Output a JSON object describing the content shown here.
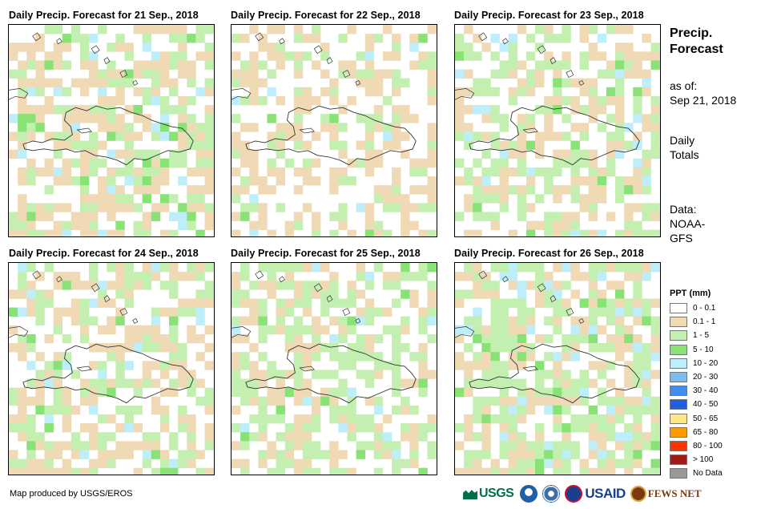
{
  "panels": [
    {
      "title": "Daily Precip. Forecast for 21 Sep., 2018"
    },
    {
      "title": "Daily Precip. Forecast for 22 Sep., 2018"
    },
    {
      "title": "Daily Precip. Forecast for 23 Sep., 2018"
    },
    {
      "title": "Daily Precip. Forecast for 24 Sep., 2018"
    },
    {
      "title": "Daily Precip. Forecast for 25 Sep., 2018"
    },
    {
      "title": "Daily Precip. Forecast for 26 Sep., 2018"
    }
  ],
  "sidebar": {
    "title_line1": "Precip.",
    "title_line2": "Forecast",
    "asof_label": "as of:",
    "asof_date": "Sep 21, 2018",
    "totals_line1": "Daily",
    "totals_line2": "Totals",
    "source_line1": "Data:",
    "source_line2": "NOAA-",
    "source_line3": "GFS"
  },
  "legend": {
    "title": "PPT (mm)",
    "items": [
      {
        "label": "0 - 0.1",
        "color": "#ffffff"
      },
      {
        "label": "0.1 - 1",
        "color": "#f0d9b5"
      },
      {
        "label": "1 - 5",
        "color": "#c3f0b0"
      },
      {
        "label": "5 - 10",
        "color": "#88e276"
      },
      {
        "label": "10 - 20",
        "color": "#bdeefa"
      },
      {
        "label": "20 - 30",
        "color": "#7bbcf0"
      },
      {
        "label": "30 - 40",
        "color": "#3f8ef0"
      },
      {
        "label": "40 - 50",
        "color": "#1f5fe0"
      },
      {
        "label": "50 - 65",
        "color": "#ffe680"
      },
      {
        "label": "65 - 80",
        "color": "#ff9900"
      },
      {
        "label": "80 - 100",
        "color": "#ff3300"
      },
      {
        "label": "> 100",
        "color": "#a01a1a"
      },
      {
        "label": "No Data",
        "color": "#999999"
      }
    ]
  },
  "footer": {
    "credit": "Map produced by USGS/EROS",
    "logo_usgs": "USGS",
    "logo_usaid": "USAID",
    "logo_fews": "FEWS NET"
  }
}
